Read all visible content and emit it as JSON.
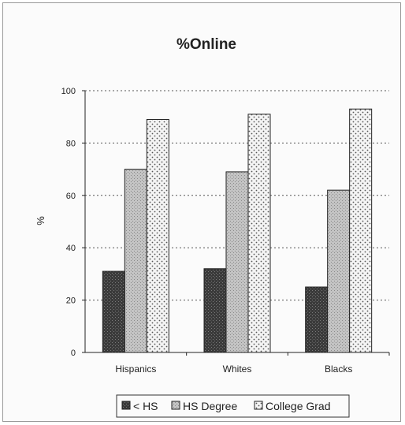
{
  "chart_data": {
    "type": "bar",
    "title": "%Online",
    "ylabel": "%",
    "xlabel": "",
    "ylim": [
      0,
      100
    ],
    "yticks": [
      0,
      20,
      40,
      60,
      80,
      100
    ],
    "categories": [
      "Hispanics",
      "Whites",
      "Blacks"
    ],
    "series": [
      {
        "name": "< HS",
        "values": [
          31,
          32,
          25
        ],
        "color": "#3c3c3c"
      },
      {
        "name": "HS Degree",
        "values": [
          70,
          69,
          62
        ],
        "color": "#b4b4b4"
      },
      {
        "name": "College Grad",
        "values": [
          89,
          91,
          93
        ],
        "color": "#e6e6e6"
      }
    ],
    "grid": true,
    "legend_position": "bottom"
  }
}
